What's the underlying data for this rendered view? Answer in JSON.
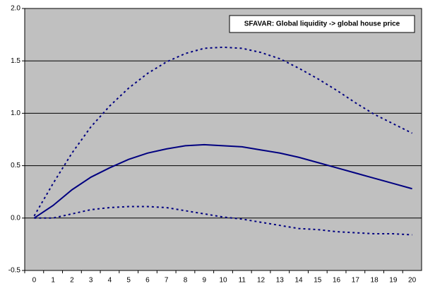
{
  "chart_data": {
    "type": "line",
    "title": "SFAVAR: Global liquidity -> global house price",
    "categories": [
      "0",
      "1",
      "2",
      "3",
      "4",
      "5",
      "6",
      "7",
      "8",
      "9",
      "10",
      "11",
      "12",
      "13",
      "14",
      "15",
      "16",
      "17",
      "18",
      "19",
      "20"
    ],
    "series": [
      {
        "color": "#000080",
        "style": "dotted",
        "values": [
          0.02,
          0.33,
          0.62,
          0.87,
          1.07,
          1.24,
          1.38,
          1.49,
          1.57,
          1.62,
          1.63,
          1.62,
          1.58,
          1.52,
          1.43,
          1.33,
          1.22,
          1.1,
          0.99,
          0.9,
          0.81
        ]
      },
      {
        "color": "#000080",
        "style": "solid",
        "values": [
          0,
          0.12,
          0.27,
          0.39,
          0.48,
          0.56,
          0.62,
          0.66,
          0.69,
          0.7,
          0.69,
          0.68,
          0.65,
          0.62,
          0.58,
          0.53,
          0.48,
          0.43,
          0.38,
          0.33,
          0.28
        ]
      },
      {
        "color": "#000080",
        "style": "dotted",
        "values": [
          0,
          0,
          0.04,
          0.08,
          0.1,
          0.11,
          0.11,
          0.1,
          0.07,
          0.04,
          0.01,
          -0.01,
          -0.04,
          -0.07,
          -0.1,
          -0.11,
          -0.13,
          -0.14,
          -0.15,
          -0.15,
          -0.16
        ]
      }
    ],
    "ylim": [
      -0.5,
      2.0
    ],
    "yticks": [
      {
        "value": -0.5,
        "label": "-0.5"
      },
      {
        "value": 0,
        "label": "0.0"
      },
      {
        "value": 0.5,
        "label": "0.5"
      },
      {
        "value": 1,
        "label": "1.0"
      },
      {
        "value": 1.5,
        "label": "1.5"
      },
      {
        "value": 2,
        "label": "2.0"
      }
    ],
    "grid": true,
    "background": "#c0c0c0"
  }
}
